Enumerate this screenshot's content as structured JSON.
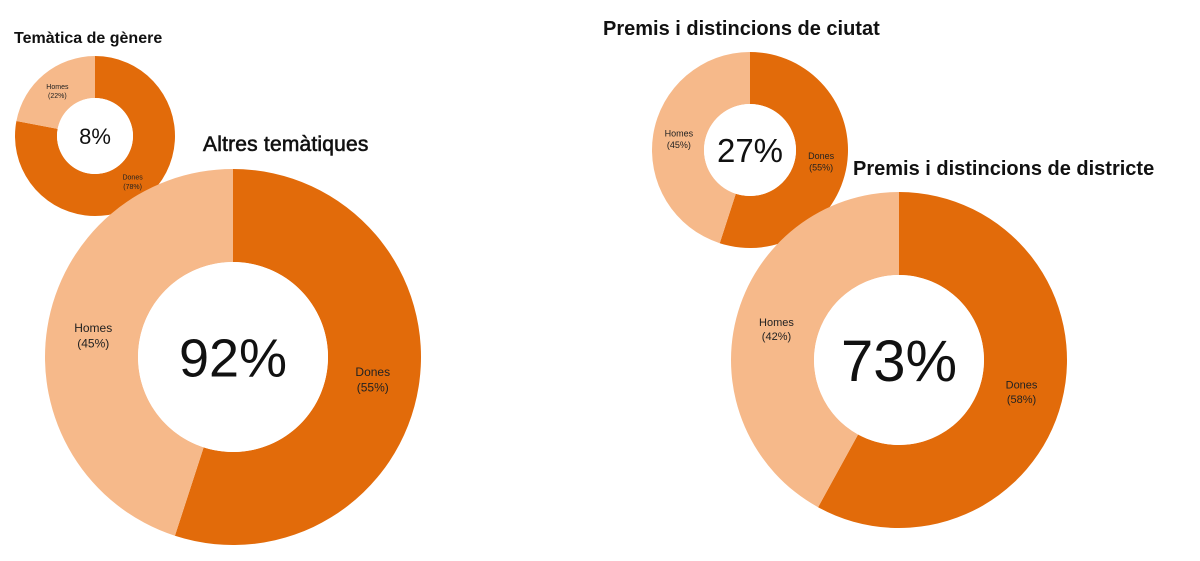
{
  "colors": {
    "dones": "#e26b0a",
    "homes": "#f6b98a",
    "hole": "#ffffff"
  },
  "chart_data": [
    {
      "type": "donut",
      "title": "Temàtica de gènere",
      "center_label": "8%",
      "slices": [
        {
          "name": "Dones",
          "value": 78,
          "label": "Dones",
          "pct_label": "(78%)"
        },
        {
          "name": "Homes",
          "value": 22,
          "label": "Homes",
          "pct_label": "(22%)"
        }
      ]
    },
    {
      "type": "donut",
      "title": "Altres temàtiques",
      "center_label": "92%",
      "slices": [
        {
          "name": "Dones",
          "value": 55,
          "label": "Dones",
          "pct_label": "(55%)"
        },
        {
          "name": "Homes",
          "value": 45,
          "label": "Homes",
          "pct_label": "(45%)"
        }
      ]
    },
    {
      "type": "donut",
      "title": "Premis i distincions de ciutat",
      "center_label": "27%",
      "slices": [
        {
          "name": "Dones",
          "value": 55,
          "label": "Dones",
          "pct_label": "(55%)"
        },
        {
          "name": "Homes",
          "value": 45,
          "label": "Homes",
          "pct_label": "(45%)"
        }
      ]
    },
    {
      "type": "donut",
      "title": "Premis i distincions de districte",
      "center_label": "73%",
      "slices": [
        {
          "name": "Dones",
          "value": 58,
          "label": "Dones",
          "pct_label": "(58%)"
        },
        {
          "name": "Homes",
          "value": 42,
          "label": "Homes",
          "pct_label": "(42%)"
        }
      ]
    }
  ]
}
